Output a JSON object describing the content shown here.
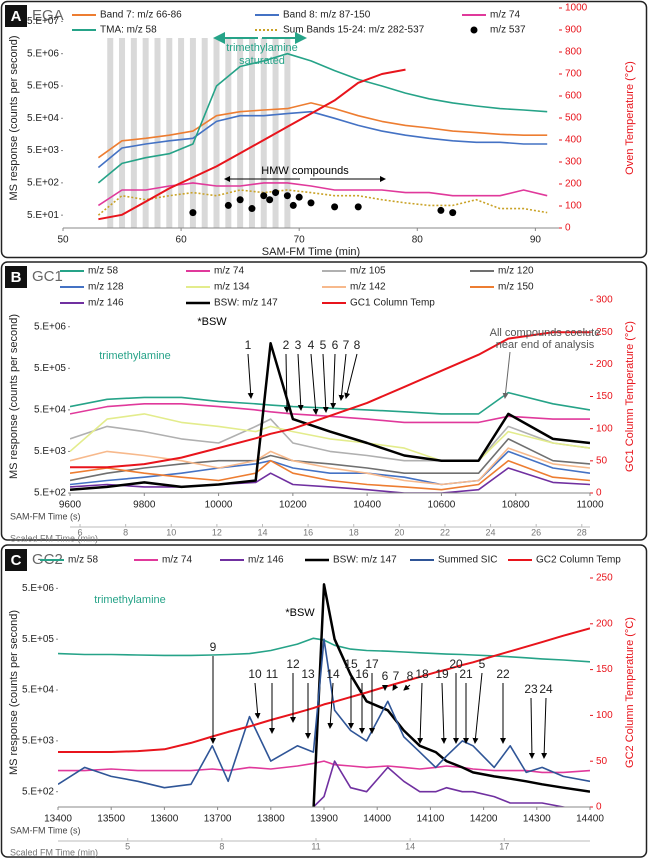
{
  "chart_data": [
    {
      "type": "line",
      "panel": "A",
      "title": "EGA",
      "x_label": "SAM-FM Time (min)",
      "y_label": "MS response (counts per second)",
      "y2_label": "Oven Temperature (°C)",
      "xlim": [
        50,
        92
      ],
      "xticks": [
        50,
        60,
        70,
        80,
        90
      ],
      "ylog": true,
      "ylim": [
        20,
        130000000
      ],
      "yticks": [
        {
          "value": 50,
          "label": "5.E+01"
        },
        {
          "value": 500,
          "label": "5.E+02"
        },
        {
          "value": 5000,
          "label": "5.E+03"
        },
        {
          "value": 50000,
          "label": "5.E+04"
        },
        {
          "value": 500000,
          "label": "5.E+05"
        },
        {
          "value": 5000000,
          "label": "5.E+06"
        },
        {
          "value": 50000000,
          "label": "5.E+07"
        }
      ],
      "y2lim": [
        0,
        1000
      ],
      "y2ticks": [
        0,
        100,
        200,
        300,
        400,
        500,
        600,
        700,
        800,
        900,
        1000
      ],
      "legend": "top",
      "grid": false,
      "shaded_x": [
        54,
        55,
        56,
        57,
        58,
        59,
        60,
        61,
        62,
        63,
        64,
        65,
        66,
        67,
        68,
        69
      ],
      "x": [
        53,
        55,
        57,
        59,
        61,
        63,
        65,
        67,
        69,
        71,
        73,
        75,
        77,
        79,
        81,
        83,
        85,
        87,
        89,
        91
      ],
      "series": [
        {
          "name": "Band 7: m/z 66-86",
          "color": "#ed7d31",
          "values": [
            3000,
            10000,
            12000,
            15000,
            20000,
            60000,
            80000,
            90000,
            100000,
            150000,
            100000,
            60000,
            40000,
            30000,
            25000,
            20000,
            18000,
            16000,
            15000,
            15000
          ]
        },
        {
          "name": "Band 8: m/z 87-150",
          "color": "#4472c4",
          "values": [
            1500,
            6000,
            8000,
            10000,
            12000,
            40000,
            60000,
            60000,
            70000,
            80000,
            50000,
            30000,
            20000,
            15000,
            12000,
            10000,
            9000,
            9000,
            8000,
            8000
          ]
        },
        {
          "name": "m/z 74",
          "color": "#e0399b",
          "values": [
            100,
            300,
            300,
            400,
            500,
            400,
            400,
            500,
            500,
            400,
            300,
            300,
            300,
            250,
            250,
            200,
            200,
            200,
            300,
            200
          ]
        },
        {
          "name": "TMA: m/z 58",
          "color": "#26a388",
          "values": [
            500,
            2000,
            3000,
            4000,
            8000,
            500000,
            2000000,
            3000000,
            5000000,
            3000000,
            1500000,
            800000,
            500000,
            300000,
            200000,
            150000,
            120000,
            100000,
            90000,
            80000
          ]
        },
        {
          "name": "Sum Bands 15-24: m/z 282-537",
          "color": "#c9a227",
          "style": "dotted",
          "values": [
            50,
            200,
            150,
            200,
            250,
            200,
            300,
            250,
            300,
            250,
            200,
            200,
            150,
            120,
            100,
            100,
            150,
            80,
            80,
            60
          ]
        },
        {
          "name": "m/z 537",
          "color": "#000000",
          "type": "scatter",
          "x": [
            61,
            64,
            65,
            66,
            67,
            67.5,
            68,
            69,
            69.5,
            70,
            71,
            73,
            75,
            82,
            83
          ],
          "values": [
            60,
            100,
            150,
            80,
            200,
            150,
            250,
            200,
            100,
            180,
            120,
            90,
            90,
            70,
            60
          ]
        },
        {
          "color": "#e8141c",
          "axis": "y2",
          "values": [
            40,
            60,
            120,
            180,
            230,
            280,
            340,
            400,
            460,
            520,
            580,
            660,
            700,
            720,
            null,
            null,
            null,
            null,
            null,
            null
          ]
        }
      ],
      "annotations": [
        "trimethylamine",
        "saturated",
        "HMW compounds"
      ]
    },
    {
      "type": "line",
      "panel": "B",
      "title": "GC1",
      "x_label": "SAM-FM Time (s)",
      "x2_label": "Scaled FM Time (min)",
      "y_label": "MS response (counts per second)",
      "y2_label": "GC1 Column Temperature (°C)",
      "xlim": [
        9600,
        11000
      ],
      "xticks": [
        9600,
        9800,
        10000,
        10200,
        10400,
        10600,
        10800,
        11000
      ],
      "x2lim": [
        5.56,
        28.36
      ],
      "x2ticks": [
        6,
        8,
        10,
        12,
        14,
        16,
        18,
        20,
        22,
        24,
        26,
        28
      ],
      "ylog": true,
      "ylim": [
        500,
        22000000
      ],
      "yticks": [
        {
          "value": 500,
          "label": "5.E+02"
        },
        {
          "value": 5000,
          "label": "5.E+03"
        },
        {
          "value": 50000,
          "label": "5.E+04"
        },
        {
          "value": 500000,
          "label": "5.E+05"
        },
        {
          "value": 5000000,
          "label": "5.E+06"
        }
      ],
      "y2lim": [
        0,
        300
      ],
      "y2ticks": [
        0,
        50,
        100,
        150,
        200,
        250,
        300
      ],
      "legend": "top",
      "grid": false,
      "x": [
        9600,
        9700,
        9800,
        9900,
        10000,
        10100,
        10140,
        10200,
        10300,
        10400,
        10500,
        10600,
        10700,
        10780,
        10900,
        11000
      ],
      "series": [
        {
          "name": "m/z 58",
          "color": "#26a388",
          "values": [
            60000,
            90000,
            100000,
            100000,
            80000,
            70000,
            65000,
            60000,
            55000,
            50000,
            45000,
            40000,
            40000,
            130000,
            70000,
            50000
          ]
        },
        {
          "name": "m/z 74",
          "color": "#e0399b",
          "values": [
            40000,
            60000,
            70000,
            70000,
            60000,
            50000,
            45000,
            40000,
            35000,
            30000,
            25000,
            25000,
            25000,
            35000,
            30000,
            30000
          ]
        },
        {
          "name": "m/z 105",
          "color": "#b0b0b0",
          "values": [
            10000,
            20000,
            15000,
            10000,
            8000,
            20000,
            30000,
            8000,
            5000,
            4000,
            3000,
            3000,
            3000,
            20000,
            8000,
            6000
          ]
        },
        {
          "name": "m/z 120",
          "color": "#707070",
          "values": [
            1000,
            1500,
            2000,
            2500,
            3000,
            3000,
            4000,
            3000,
            2500,
            2000,
            1500,
            1500,
            1500,
            10000,
            3000,
            2500
          ]
        },
        {
          "name": "m/z 128",
          "color": "#4472c4",
          "values": [
            800,
            1000,
            1200,
            1500,
            2000,
            2500,
            3000,
            2000,
            1500,
            1500,
            1200,
            800,
            1000,
            5000,
            2000,
            1500
          ]
        },
        {
          "name": "m/z 134",
          "color": "#e3ec8c",
          "values": [
            5000,
            30000,
            40000,
            25000,
            20000,
            15000,
            20000,
            15000,
            10000,
            8000,
            6000,
            3000,
            3000,
            15000,
            8000,
            6000
          ]
        },
        {
          "name": "m/z 142",
          "color": "#f7b98c",
          "values": [
            3000,
            5000,
            4000,
            3000,
            2000,
            3000,
            5000,
            3000,
            2000,
            1500,
            1000,
            800,
            1000,
            6000,
            2500,
            2000
          ]
        },
        {
          "name": "m/z 150",
          "color": "#ed7d31",
          "values": [
            1500,
            2000,
            1500,
            1200,
            1000,
            1500,
            3000,
            1500,
            1000,
            800,
            700,
            600,
            800,
            3000,
            1200,
            1000
          ]
        },
        {
          "name": "m/z 146",
          "color": "#7030a0",
          "values": [
            700,
            800,
            700,
            700,
            800,
            900,
            1500,
            800,
            700,
            600,
            500,
            500,
            600,
            2000,
            900,
            800
          ]
        },
        {
          "name": "BSW: m/z 147",
          "color": "#000000",
          "width": 2.5,
          "values": [
            600,
            700,
            900,
            700,
            800,
            1000,
            2000000,
            30000,
            15000,
            8000,
            4000,
            3000,
            3000,
            40000,
            10000,
            8000
          ]
        },
        {
          "name": "GC1 Column Temp",
          "color": "#e8141c",
          "axis": "y2",
          "values": [
            40,
            40,
            45,
            55,
            70,
            85,
            92,
            100,
            120,
            140,
            165,
            190,
            215,
            240,
            250,
            250
          ]
        }
      ],
      "annotations": [
        "*BSW",
        "trimethylamine",
        "All compounds coelute",
        "near end of analysis"
      ],
      "peak_labels": [
        "1",
        "2",
        "3",
        "4",
        "5",
        "6",
        "7",
        "8"
      ]
    },
    {
      "type": "line",
      "panel": "C",
      "title": "GC2",
      "x_label": "SAM-FM Time (s)",
      "x2_label": "Scaled FM Time (min)",
      "y_label": "MS response (counts per second)",
      "y2_label": "GC2 Column Temperature (°C)",
      "xlim": [
        13400,
        14400
      ],
      "xticks": [
        13400,
        13500,
        13600,
        13700,
        13800,
        13900,
        14000,
        14100,
        14200,
        14300,
        14400
      ],
      "x2lim": [
        2.78,
        19.73
      ],
      "x2ticks": [
        5,
        8,
        11,
        14,
        17
      ],
      "ylog": true,
      "ylim": [
        250,
        8000000
      ],
      "yticks": [
        {
          "value": 500,
          "label": "5.E+02"
        },
        {
          "value": 5000,
          "label": "5.E+03"
        },
        {
          "value": 50000,
          "label": "5.E+04"
        },
        {
          "value": 500000,
          "label": "5.E+05"
        },
        {
          "value": 5000000,
          "label": "5.E+06"
        }
      ],
      "y2lim": [
        0,
        250
      ],
      "y2ticks": [
        0,
        50,
        100,
        150,
        200,
        250
      ],
      "legend": "top",
      "grid": false,
      "x": [
        13400,
        13450,
        13500,
        13550,
        13600,
        13650,
        13690,
        13720,
        13760,
        13800,
        13850,
        13880,
        13900,
        13920,
        13950,
        13980,
        14020,
        14050,
        14080,
        14110,
        14130,
        14160,
        14180,
        14220,
        14250,
        14280,
        14310,
        14350,
        14400
      ],
      "series": [
        {
          "name": "m/z 58",
          "color": "#26a388",
          "values": [
            260000,
            250000,
            250000,
            245000,
            240000,
            240000,
            245000,
            250000,
            260000,
            300000,
            400000,
            520000,
            480000,
            380000,
            320000,
            300000,
            290000,
            280000,
            270000,
            260000,
            255000,
            250000,
            245000,
            235000,
            225000,
            215000,
            205000,
            195000,
            180000
          ]
        },
        {
          "name": "m/z 74",
          "color": "#e0399b",
          "values": [
            1300,
            1300,
            1400,
            1300,
            1300,
            1300,
            1400,
            1300,
            1500,
            1400,
            1600,
            1800,
            2000,
            1700,
            1600,
            1500,
            1600,
            1500,
            1400,
            1500,
            1600,
            1500,
            1400,
            1300,
            1300,
            1300,
            1200,
            1200,
            1300
          ]
        },
        {
          "name": "m/z 146",
          "color": "#7030a0",
          "values": [
            200,
            200,
            200,
            200,
            200,
            200,
            200,
            200,
            200,
            200,
            200,
            250,
            400,
            2000,
            600,
            500,
            1500,
            800,
            500,
            500,
            600,
            500,
            500,
            400,
            300,
            300,
            300,
            250,
            200
          ]
        },
        {
          "name": "BSW: m/z 147",
          "color": "#000000",
          "width": 2.5,
          "values": [
            200,
            200,
            200,
            200,
            200,
            200,
            200,
            200,
            200,
            200,
            200,
            200,
            6000000,
            500000,
            100000,
            30000,
            20000,
            8000,
            4000,
            3000,
            2000,
            1500,
            1200,
            1000,
            900,
            800,
            700,
            600,
            500
          ]
        },
        {
          "name": "Summed SIC",
          "color": "#2f5597",
          "values": [
            700,
            1500,
            1000,
            800,
            600,
            700,
            4000,
            800,
            15000,
            2000,
            4000,
            3000,
            500000,
            20000,
            8000,
            5000,
            30000,
            6000,
            3000,
            1500,
            2500,
            5000,
            4000,
            1500,
            4000,
            1200,
            1500,
            1000,
            800
          ]
        },
        {
          "name": "GC2 Column Temp",
          "color": "#e8141c",
          "axis": "y2",
          "values": [
            60,
            60,
            60,
            61,
            63,
            70,
            77,
            82,
            88,
            95,
            103,
            108,
            112,
            115,
            120,
            125,
            132,
            137,
            142,
            147,
            150,
            155,
            158,
            165,
            170,
            175,
            180,
            187,
            195
          ]
        }
      ],
      "annotations": [
        "trimethylamine",
        "*BSW"
      ],
      "peak_labels": [
        "9",
        "10",
        "11",
        "12",
        "13",
        "14",
        "15",
        "16",
        "17",
        "6",
        "7",
        "8",
        "18",
        "19",
        "20",
        "21",
        "5",
        "22",
        "23",
        "24"
      ]
    }
  ]
}
